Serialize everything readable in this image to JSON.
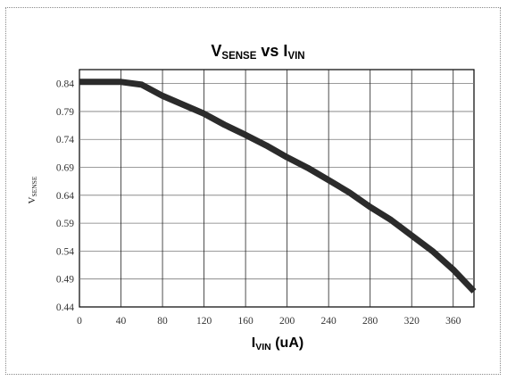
{
  "chart_data": {
    "type": "line",
    "title": {
      "main": "V",
      "main_sub": "SENSE",
      "mid": " vs I",
      "mid_sub": "VIN"
    },
    "xlabel": {
      "main": "I",
      "main_sub": "VIN",
      "rest": " (uA)"
    },
    "ylabel": {
      "main": "V",
      "main_sub": "SENSE"
    },
    "xlim": [
      0,
      380
    ],
    "ylim": [
      0.44,
      0.865
    ],
    "x_ticks": [
      0,
      40,
      80,
      120,
      160,
      200,
      240,
      280,
      320,
      360
    ],
    "y_ticks": [
      "0.44",
      "0.49",
      "0.54",
      "0.59",
      "0.64",
      "0.69",
      "0.74",
      "0.79",
      "0.84"
    ],
    "grid": true,
    "series": [
      {
        "color": "#2b2b2b",
        "x": [
          0,
          20,
          40,
          60,
          80,
          100,
          120,
          140,
          160,
          180,
          200,
          220,
          240,
          260,
          280,
          300,
          320,
          340,
          360,
          380
        ],
        "y": [
          0.843,
          0.843,
          0.843,
          0.838,
          0.818,
          0.802,
          0.786,
          0.766,
          0.748,
          0.729,
          0.708,
          0.689,
          0.667,
          0.645,
          0.619,
          0.596,
          0.568,
          0.54,
          0.507,
          0.468
        ]
      }
    ]
  }
}
